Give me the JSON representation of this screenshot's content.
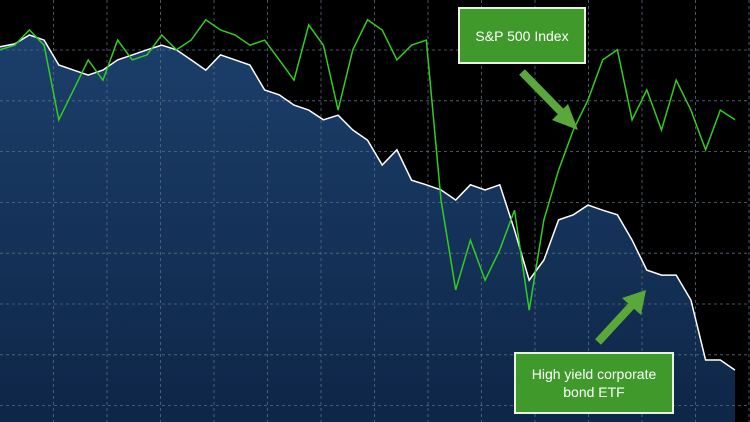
{
  "chart_data": {
    "type": "line",
    "grid": true,
    "ylim": [
      0,
      100
    ],
    "series": [
      {
        "name": "High yield corporate bond ETF",
        "color": "#ffffff",
        "fill": true,
        "values": [
          88.9,
          89.6,
          91.7,
          90.5,
          84.6,
          83.4,
          82.2,
          83.4,
          85.8,
          87,
          88.2,
          89.3,
          88.2,
          85.8,
          83.4,
          87,
          85.8,
          84.6,
          78.7,
          77.5,
          75.1,
          73.9,
          71.6,
          72.7,
          69.2,
          66.8,
          60.9,
          64.5,
          57.3,
          56.2,
          55,
          52.6,
          56.2,
          55,
          56.2,
          45.5,
          33.6,
          38.4,
          47.9,
          49.1,
          51.4,
          50.2,
          49.1,
          43.1,
          36,
          34.8,
          34.8,
          28.9,
          14.7,
          14.7,
          12.3
        ]
      },
      {
        "name": "S&P 500 Index",
        "color": "#33cc22",
        "fill": false,
        "values": [
          88.2,
          89.3,
          92.9,
          89.3,
          71.6,
          78.7,
          85.8,
          81,
          90.5,
          85.8,
          87,
          91.7,
          88.2,
          90.5,
          95.3,
          92.9,
          91.7,
          89.3,
          90.5,
          85.8,
          81,
          94.1,
          89.3,
          73.9,
          88.2,
          95.3,
          92.9,
          85.8,
          89.3,
          90.5,
          52.6,
          31.3,
          43.1,
          33.6,
          40.8,
          50.2,
          26.5,
          47.9,
          59.7,
          69.2,
          76.3,
          85.8,
          88.2,
          71.6,
          78.7,
          69.2,
          81,
          73.9,
          64.5,
          73.9,
          71.6
        ]
      }
    ]
  }
}
